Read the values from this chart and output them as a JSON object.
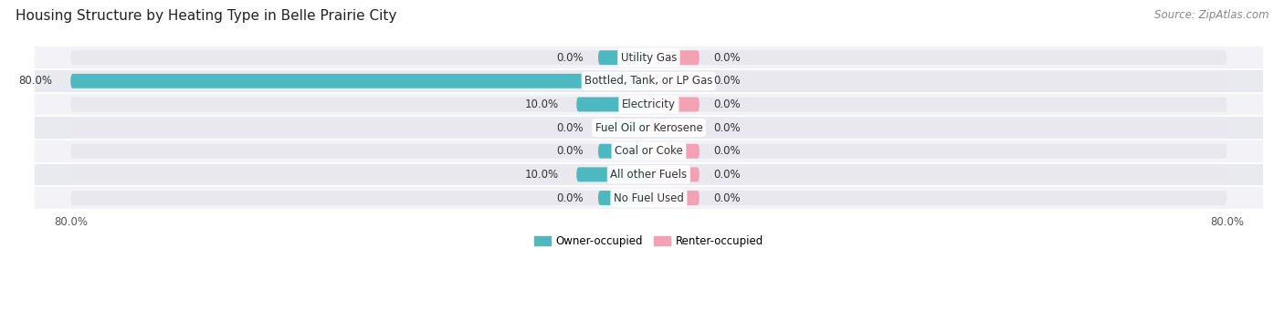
{
  "title": "Housing Structure by Heating Type in Belle Prairie City",
  "source": "Source: ZipAtlas.com",
  "categories": [
    "Utility Gas",
    "Bottled, Tank, or LP Gas",
    "Electricity",
    "Fuel Oil or Kerosene",
    "Coal or Coke",
    "All other Fuels",
    "No Fuel Used"
  ],
  "owner_values": [
    0.0,
    80.0,
    10.0,
    0.0,
    0.0,
    10.0,
    0.0
  ],
  "renter_values": [
    0.0,
    0.0,
    0.0,
    0.0,
    0.0,
    0.0,
    0.0
  ],
  "owner_color": "#4db8c0",
  "renter_color": "#f4a0b5",
  "bar_bg_color": "#e8e8ee",
  "row_bg_even": "#f0f0f5",
  "row_bg_odd": "#e8e8ee",
  "x_min": -80.0,
  "x_max": 80.0,
  "axis_label_left": "80.0%",
  "axis_label_right": "80.0%",
  "title_fontsize": 11,
  "source_fontsize": 8.5,
  "label_fontsize": 8.5,
  "cat_fontsize": 8.5,
  "bar_height": 0.62,
  "stub_owner": 7.0,
  "stub_renter": 7.0,
  "legend_owner": "Owner-occupied",
  "legend_renter": "Renter-occupied"
}
